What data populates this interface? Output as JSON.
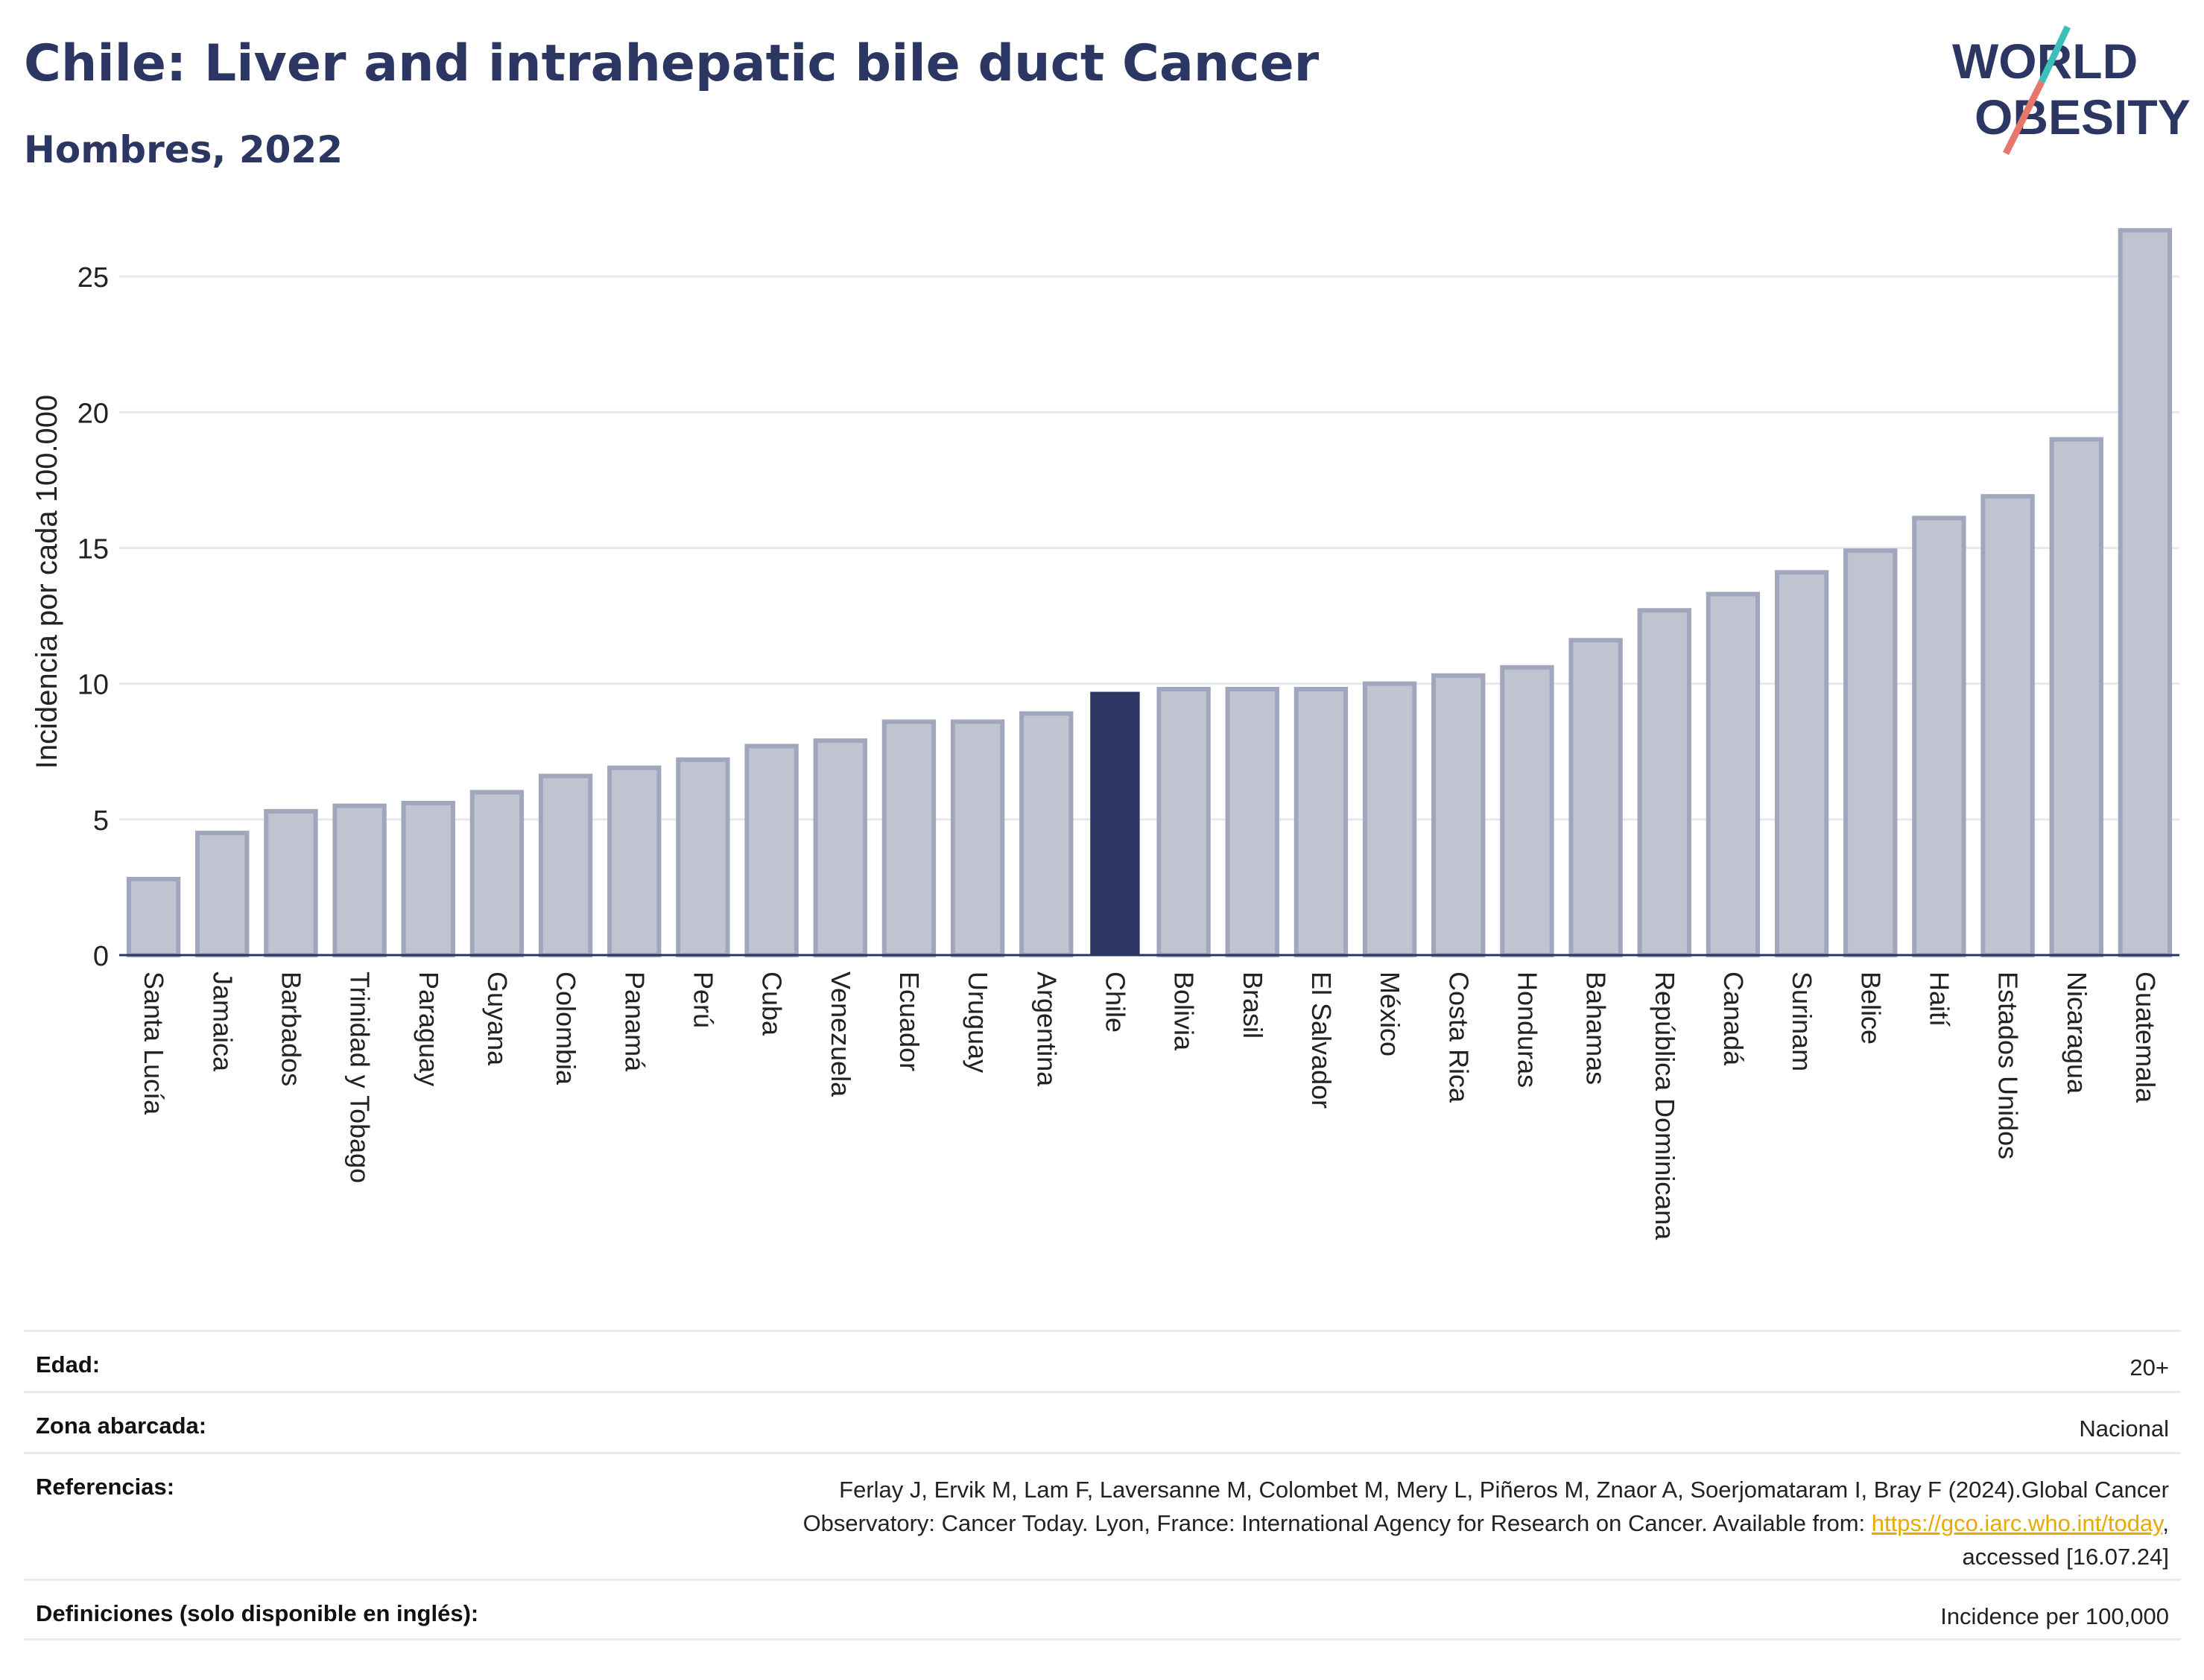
{
  "header": {
    "title": "Chile: Liver and intrahepatic bile duct Cancer",
    "subtitle": "Hombres, 2022"
  },
  "logo": {
    "line1": "WORLD",
    "line2": "OBESITY"
  },
  "colors": {
    "highlight": "#2c3663",
    "bar": "#c0c4d1",
    "bar_edge": "#a0a6bb",
    "grid": "#e6e8ee",
    "title": "#2c3663",
    "logo_teal": "#3bbfb8",
    "logo_coral": "#e8766a"
  },
  "chart_data": {
    "type": "bar",
    "title": "Chile: Liver and intrahepatic bile duct Cancer",
    "subtitle": "Hombres, 2022",
    "ylabel": "Incidencia por cada 100.000",
    "xlabel": "",
    "ylim": [
      0,
      27.5
    ],
    "yticks": [
      0,
      5,
      10,
      15,
      20,
      25
    ],
    "grid": true,
    "highlight": "Chile",
    "categories": [
      "Santa Lucía",
      "Jamaica",
      "Barbados",
      "Trinidad y Tobago",
      "Paraguay",
      "Guyana",
      "Colombia",
      "Panamá",
      "Perú",
      "Cuba",
      "Venezuela",
      "Ecuador",
      "Uruguay",
      "Argentina",
      "Chile",
      "Bolivia",
      "Brasil",
      "El Salvador",
      "México",
      "Costa Rica",
      "Honduras",
      "Bahamas",
      "República Dominicana",
      "Canadá",
      "Surinam",
      "Belice",
      "Haití",
      "Estados Unidos",
      "Nicaragua",
      "Guatemala"
    ],
    "values": [
      2.8,
      4.5,
      5.3,
      5.5,
      5.6,
      6.0,
      6.6,
      6.9,
      7.2,
      7.7,
      7.9,
      8.6,
      8.6,
      8.9,
      9.7,
      9.8,
      9.8,
      9.8,
      10.0,
      10.3,
      10.6,
      11.6,
      12.7,
      13.3,
      14.1,
      14.9,
      16.1,
      16.9,
      19.0,
      26.7
    ]
  },
  "meta": {
    "age_label": "Edad:",
    "age_value": "20+",
    "zone_label": "Zona abarcada:",
    "zone_value": "Nacional",
    "ref_label": "Referencias:",
    "ref_line1": "Ferlay J, Ervik M, Lam F, Laversanne M, Colombet M, Mery L, Piñeros M, Znaor A, Soerjomataram I, Bray F (2024).Global Cancer",
    "ref_line2_pre": "Observatory: Cancer Today. Lyon, France: International Agency for Research on Cancer. Available from: ",
    "ref_link": "https://gco.iarc.who.int/today",
    "ref_line2_post": ",",
    "ref_line3": "accessed [16.07.24]",
    "def_label": "Definiciones (solo disponible en inglés):",
    "def_value": "Incidence per 100,000"
  }
}
